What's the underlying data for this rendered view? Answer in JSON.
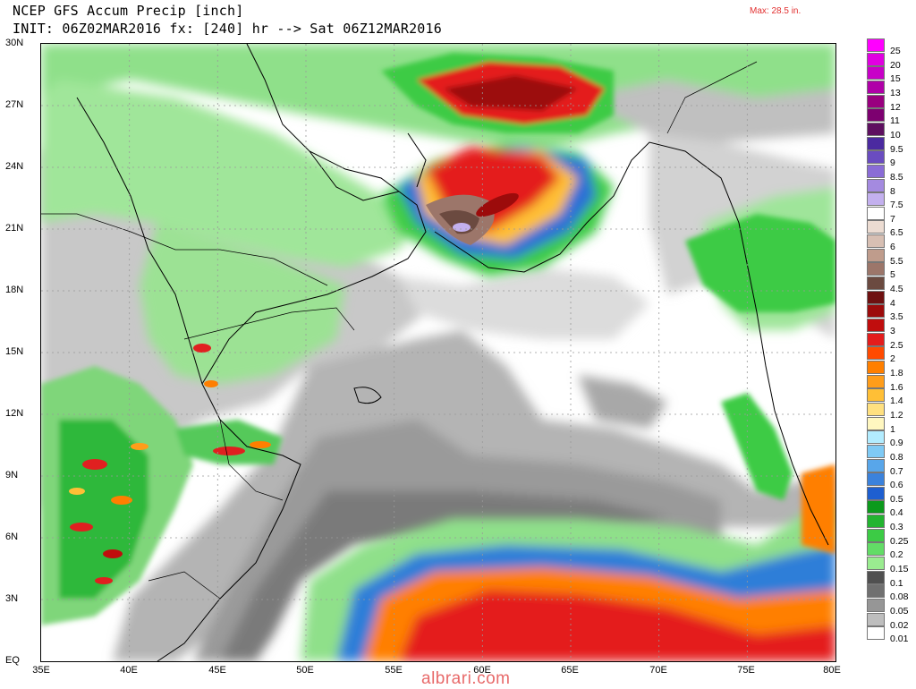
{
  "header": {
    "title_line1": "NCEP GFS Accum Precip [inch]",
    "title_line2": "INIT: 06Z02MAR2016 fx: [240] hr --> Sat 06Z12MAR2016",
    "max_label": "Max: 28.5 in."
  },
  "map": {
    "lat_labels": [
      "30N",
      "27N",
      "24N",
      "21N",
      "18N",
      "15N",
      "12N",
      "9N",
      "6N",
      "3N",
      "EQ"
    ],
    "lon_labels": [
      "35E",
      "40E",
      "45E",
      "50E",
      "55E",
      "60E",
      "65E",
      "70E",
      "75E",
      "80E"
    ],
    "extent": {
      "lon_min": 35,
      "lon_max": 80,
      "lat_min": 0,
      "lat_max": 30
    }
  },
  "colorbar": {
    "levels": [
      {
        "label": "25",
        "color": "#ff00ff"
      },
      {
        "label": "20",
        "color": "#e100e1"
      },
      {
        "label": "15",
        "color": "#c800c8"
      },
      {
        "label": "13",
        "color": "#b000a8"
      },
      {
        "label": "12",
        "color": "#99007f"
      },
      {
        "label": "11",
        "color": "#7d0070"
      },
      {
        "label": "10",
        "color": "#5e1060"
      },
      {
        "label": "9.5",
        "color": "#4b2aa0"
      },
      {
        "label": "9",
        "color": "#6a4cc0"
      },
      {
        "label": "8.5",
        "color": "#8a6cd6"
      },
      {
        "label": "8",
        "color": "#a48ae0"
      },
      {
        "label": "7.5",
        "color": "#c3b0ee"
      },
      {
        "label": "7",
        "color": "#ffffff"
      },
      {
        "label": "6.5",
        "color": "#ecdcd2"
      },
      {
        "label": "6",
        "color": "#d7bfb3"
      },
      {
        "label": "5.5",
        "color": "#bf9c8c"
      },
      {
        "label": "5",
        "color": "#9c766a"
      },
      {
        "label": "4.5",
        "color": "#6b4a40"
      },
      {
        "label": "4",
        "color": "#6e1010"
      },
      {
        "label": "3.5",
        "color": "#9c0b0b"
      },
      {
        "label": "3",
        "color": "#c00d0d"
      },
      {
        "label": "2.5",
        "color": "#e41c1c"
      },
      {
        "label": "2",
        "color": "#ff4a00"
      },
      {
        "label": "1.8",
        "color": "#ff7f00"
      },
      {
        "label": "1.6",
        "color": "#ff9d1a"
      },
      {
        "label": "1.4",
        "color": "#ffbf36"
      },
      {
        "label": "1.2",
        "color": "#ffe080"
      },
      {
        "label": "1",
        "color": "#fff7c0"
      },
      {
        "label": "0.9",
        "color": "#b2ecff"
      },
      {
        "label": "0.8",
        "color": "#7fcaf5"
      },
      {
        "label": "0.7",
        "color": "#58a6ea"
      },
      {
        "label": "0.6",
        "color": "#3b82dc"
      },
      {
        "label": "0.5",
        "color": "#1e5fd0"
      },
      {
        "label": "0.4",
        "color": "#0c9a1c"
      },
      {
        "label": "0.3",
        "color": "#22b430"
      },
      {
        "label": "0.25",
        "color": "#3ccb45"
      },
      {
        "label": "0.2",
        "color": "#62dc66"
      },
      {
        "label": "0.15",
        "color": "#9aec90"
      },
      {
        "label": "0.1",
        "color": "#505050"
      },
      {
        "label": "0.08",
        "color": "#707070"
      },
      {
        "label": "0.05",
        "color": "#969696"
      },
      {
        "label": "0.02",
        "color": "#bebebe"
      },
      {
        "label": "0.01",
        "color": "#ffffff"
      }
    ]
  },
  "watermark": "albrari.com"
}
